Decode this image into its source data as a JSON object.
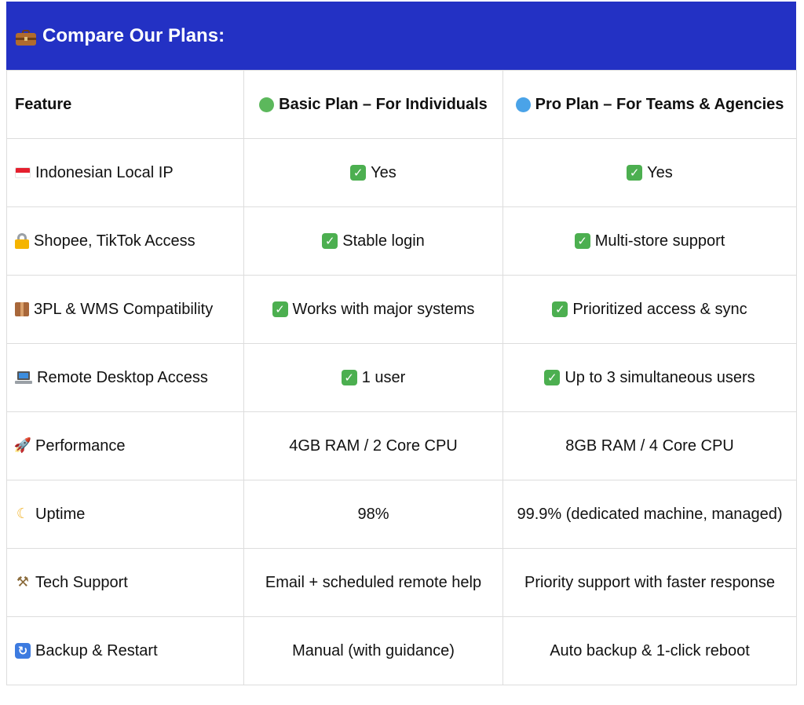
{
  "header": {
    "title": "Compare Our Plans:",
    "icon": "briefcase-icon",
    "background": "#2331c4"
  },
  "table": {
    "columns": [
      {
        "label": "Feature"
      },
      {
        "label": "Basic Plan – For Individuals",
        "icon": "green-circle-icon",
        "icon_color": "#5cb85c"
      },
      {
        "label": "Pro Plan – For Teams & Agencies",
        "icon": "blue-circle-icon",
        "icon_color": "#4aa3e8"
      }
    ],
    "rows": [
      {
        "icon": "indonesia-flag-icon",
        "feature": "Indonesian Local IP",
        "basic": "Yes",
        "pro": "Yes",
        "basic_check": true,
        "pro_check": true
      },
      {
        "icon": "lock-icon",
        "feature": "Shopee, TikTok Access",
        "basic": "Stable login",
        "pro": "Multi-store support",
        "basic_check": true,
        "pro_check": true
      },
      {
        "icon": "package-icon",
        "feature": "3PL & WMS Compatibility",
        "basic": "Works with major systems",
        "pro": "Prioritized access & sync",
        "basic_check": true,
        "pro_check": true
      },
      {
        "icon": "laptop-icon",
        "feature": "Remote Desktop Access",
        "basic": "1 user",
        "pro": "Up to 3 simultaneous users",
        "basic_check": true,
        "pro_check": true
      },
      {
        "icon": "rocket-icon",
        "feature": "Performance",
        "basic": "4GB RAM / 2 Core CPU",
        "pro": "8GB RAM / 4 Core CPU",
        "basic_check": false,
        "pro_check": false
      },
      {
        "icon": "crescent-moon-icon",
        "feature": "Uptime",
        "basic": "98%",
        "pro": "99.9% (dedicated machine, managed)",
        "basic_check": false,
        "pro_check": false
      },
      {
        "icon": "tools-icon",
        "feature": "Tech Support",
        "basic": "Email + scheduled remote help",
        "pro": "Priority support with faster response",
        "basic_check": false,
        "pro_check": false
      },
      {
        "icon": "refresh-icon",
        "feature": "Backup & Restart",
        "basic": "Manual (with guidance)",
        "pro": "Auto backup & 1-click reboot",
        "basic_check": false,
        "pro_check": false
      }
    ]
  }
}
